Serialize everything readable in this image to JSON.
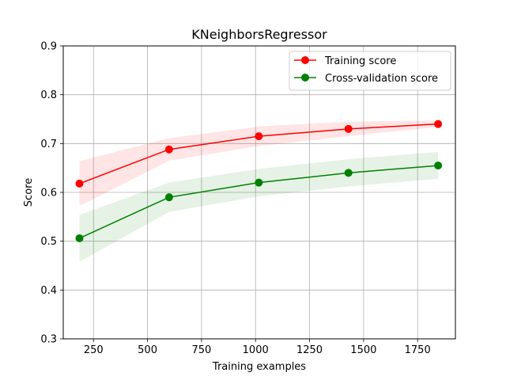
{
  "chart_data": {
    "type": "line",
    "title": "KNeighborsRegressor",
    "xlabel": "Training examples",
    "ylabel": "Score",
    "xlim": [
      110,
      1925
    ],
    "ylim": [
      0.3,
      0.9
    ],
    "xticks": [
      250,
      500,
      750,
      1000,
      1250,
      1500,
      1750
    ],
    "yticks": [
      0.3,
      0.4,
      0.5,
      0.6,
      0.7,
      0.8,
      0.9
    ],
    "grid": true,
    "legend_position": "top-right",
    "x": [
      185,
      600,
      1015,
      1430,
      1845
    ],
    "series": [
      {
        "name": "Training score",
        "color": "#ff0000",
        "values": [
          0.618,
          0.688,
          0.715,
          0.73,
          0.74
        ],
        "band_lower": [
          0.572,
          0.665,
          0.695,
          0.715,
          0.734
        ],
        "band_upper": [
          0.664,
          0.711,
          0.735,
          0.745,
          0.747
        ]
      },
      {
        "name": "Cross-validation score",
        "color": "#008000",
        "values": [
          0.506,
          0.59,
          0.62,
          0.64,
          0.655
        ],
        "band_lower": [
          0.458,
          0.56,
          0.592,
          0.612,
          0.628
        ],
        "band_upper": [
          0.554,
          0.62,
          0.648,
          0.668,
          0.683
        ]
      }
    ]
  }
}
